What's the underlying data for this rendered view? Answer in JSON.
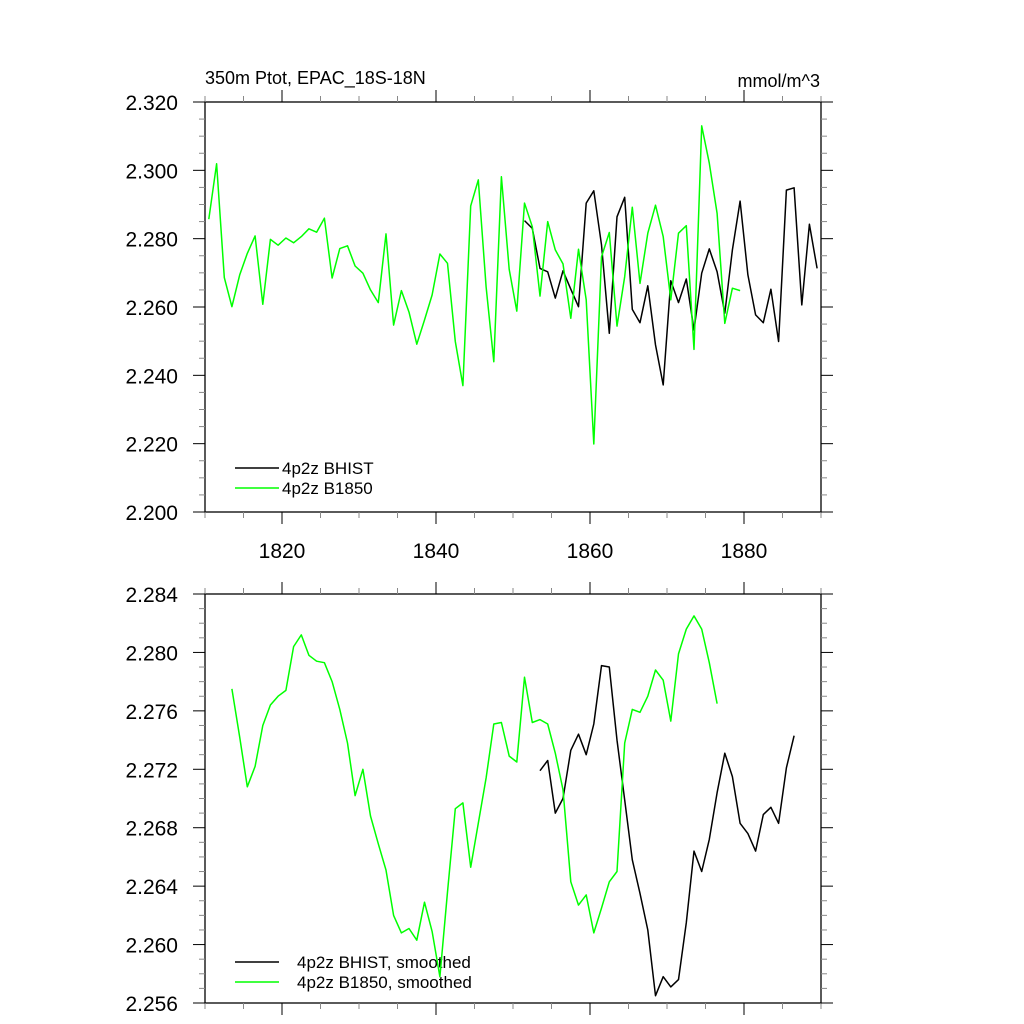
{
  "chart_data": [
    {
      "type": "line",
      "title": "350m Ptot, EPAC_18S-18N",
      "units": "mmol/m^3",
      "xlabel": "",
      "ylabel": "",
      "xlim": [
        1810,
        1890
      ],
      "ylim": [
        2.2,
        2.32
      ],
      "xticks": [
        1820,
        1840,
        1860,
        1880
      ],
      "xtick_labels": [
        "1820",
        "1840",
        "1860",
        "1880"
      ],
      "yticks": [
        2.2,
        2.22,
        2.24,
        2.26,
        2.28,
        2.3,
        2.32
      ],
      "ytick_labels": [
        "2.200",
        "2.220",
        "2.240",
        "2.260",
        "2.280",
        "2.300",
        "2.320"
      ],
      "legend_position": "bottom-left",
      "grid": false,
      "series": [
        {
          "name": "4p2z BHIST",
          "color": "#000000",
          "x_start": 1851.5,
          "values": [
            2.2853,
            2.283,
            2.2713,
            2.2703,
            2.2626,
            2.2706,
            2.2652,
            2.2601,
            2.2904,
            2.294,
            2.2782,
            2.2523,
            2.2864,
            2.2921,
            2.2593,
            2.2554,
            2.2662,
            2.2489,
            2.2372,
            2.2677,
            2.2613,
            2.2682,
            2.2533,
            2.2699,
            2.277,
            2.2703,
            2.2582,
            2.2767,
            2.291,
            2.2694,
            2.2577,
            2.2554,
            2.2652,
            2.2499,
            2.2942,
            2.2949,
            2.2606,
            2.2842,
            2.2713
          ]
        },
        {
          "name": "4p2z B1850",
          "color": "#00ff00",
          "x_start": 1810.5,
          "values": [
            2.2857,
            2.3019,
            2.2686,
            2.2601,
            2.2694,
            2.2757,
            2.2808,
            2.2608,
            2.2798,
            2.2781,
            2.2802,
            2.2788,
            2.2806,
            2.2829,
            2.2819,
            2.286,
            2.2685,
            2.2771,
            2.2779,
            2.272,
            2.2699,
            2.265,
            2.2613,
            2.2814,
            2.2547,
            2.2648,
            2.2585,
            2.2491,
            2.2562,
            2.2635,
            2.2755,
            2.2728,
            2.2499,
            2.237,
            2.2896,
            2.2972,
            2.2659,
            2.244,
            2.2981,
            2.271,
            2.2588,
            2.2904,
            2.2835,
            2.2632,
            2.285,
            2.2767,
            2.2726,
            2.2567,
            2.2769,
            2.2621,
            2.2199,
            2.2747,
            2.2818,
            2.2544,
            2.2689,
            2.2892,
            2.2669,
            2.2816,
            2.2898,
            2.2806,
            2.2621,
            2.2816,
            2.2838,
            2.2476,
            2.313,
            2.3021,
            2.2874,
            2.2552,
            2.2655,
            2.2648
          ]
        }
      ]
    },
    {
      "type": "line",
      "title": "",
      "xlabel": "",
      "ylabel": "",
      "xlim": [
        1810,
        1890
      ],
      "ylim": [
        2.256,
        2.284
      ],
      "xticks": [
        1820,
        1840,
        1860,
        1880
      ],
      "yticks": [
        2.256,
        2.26,
        2.264,
        2.268,
        2.272,
        2.276,
        2.28,
        2.284
      ],
      "ytick_labels": [
        "2.256",
        "2.260",
        "2.264",
        "2.268",
        "2.272",
        "2.276",
        "2.280",
        "2.284"
      ],
      "legend_position": "bottom-left",
      "grid": false,
      "series": [
        {
          "name": "4p2z BHIST, smoothed",
          "color": "#000000",
          "x_start": 1853.5,
          "values": [
            2.2719,
            2.2726,
            2.269,
            2.27,
            2.2733,
            2.2744,
            2.273,
            2.2751,
            2.2791,
            2.279,
            2.274,
            2.2699,
            2.2658,
            2.2635,
            2.261,
            2.2565,
            2.2578,
            2.2571,
            2.2576,
            2.2615,
            2.2664,
            2.265,
            2.2672,
            2.2704,
            2.2731,
            2.2715,
            2.2683,
            2.2676,
            2.2664,
            2.2689,
            2.2694,
            2.2683,
            2.2721,
            2.2743
          ]
        },
        {
          "name": "4p2z B1850, smoothed",
          "color": "#00ff00",
          "x_start": 1813.5,
          "values": [
            2.2775,
            2.2742,
            2.2708,
            2.2722,
            2.275,
            2.2764,
            2.277,
            2.2774,
            2.2804,
            2.2812,
            2.2798,
            2.2794,
            2.2793,
            2.278,
            2.2761,
            2.2738,
            2.2702,
            2.272,
            2.2688,
            2.2669,
            2.2651,
            2.262,
            2.2608,
            2.2611,
            2.2603,
            2.2629,
            2.2609,
            2.2578,
            2.2636,
            2.2693,
            2.2697,
            2.2653,
            2.2683,
            2.2714,
            2.2751,
            2.2752,
            2.2729,
            2.2725,
            2.2783,
            2.2752,
            2.2754,
            2.2751,
            2.2731,
            2.2706,
            2.2643,
            2.2627,
            2.2634,
            2.2608,
            2.2625,
            2.2643,
            2.265,
            2.2738,
            2.2761,
            2.2759,
            2.277,
            2.2788,
            2.2781,
            2.2753,
            2.2799,
            2.2816,
            2.2825,
            2.2816,
            2.2793,
            2.2765
          ]
        }
      ]
    }
  ]
}
